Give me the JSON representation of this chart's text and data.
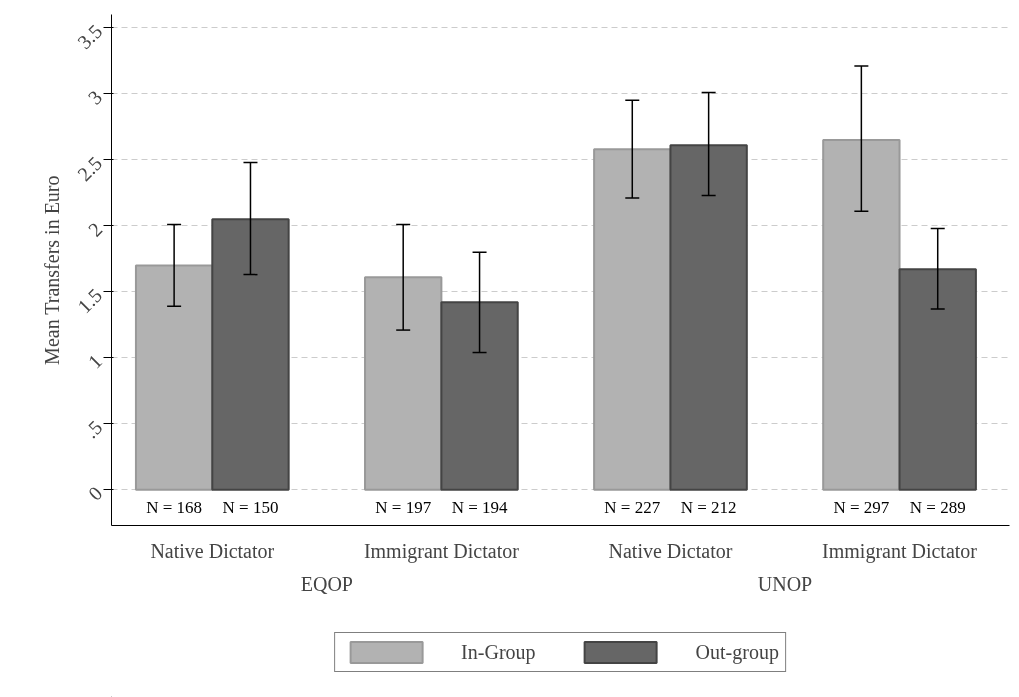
{
  "chart_data": {
    "type": "bar",
    "ylabel": "Mean Transfers in Euro",
    "categories": [
      "Native Dictator",
      "Immigrant Dictator",
      "Native Dictator",
      "Immigrant Dictator"
    ],
    "series": [
      {
        "name": "In-Group",
        "color": "#b2b2b2",
        "values": [
          1.7,
          1.61,
          2.58,
          2.65
        ],
        "errors": [
          [
            1.39,
            2.01
          ],
          [
            1.21,
            2.01
          ],
          [
            2.21,
            2.95
          ],
          [
            2.11,
            3.21
          ]
        ]
      },
      {
        "name": "Out-group",
        "color": "#666666",
        "values": [
          2.05,
          1.42,
          2.61,
          1.67
        ],
        "errors": [
          [
            1.63,
            2.48
          ],
          [
            1.04,
            1.8
          ],
          [
            2.23,
            3.01
          ],
          [
            1.37,
            1.98
          ]
        ]
      }
    ],
    "annotations": [
      "N = 168",
      "N = 150",
      "N = 197",
      "N = 194",
      "N = 227",
      "N = 212",
      "N = 297",
      "N = 289",
      "EQOP",
      "UNOP"
    ],
    "ylim": [
      -0.27,
      3.6
    ],
    "yticks": [
      0,
      {
        "value": 0.5,
        "label": ".5"
      },
      1,
      1.5,
      2,
      2.5,
      3,
      3.5
    ],
    "grid": "y",
    "legend": "bottom"
  }
}
